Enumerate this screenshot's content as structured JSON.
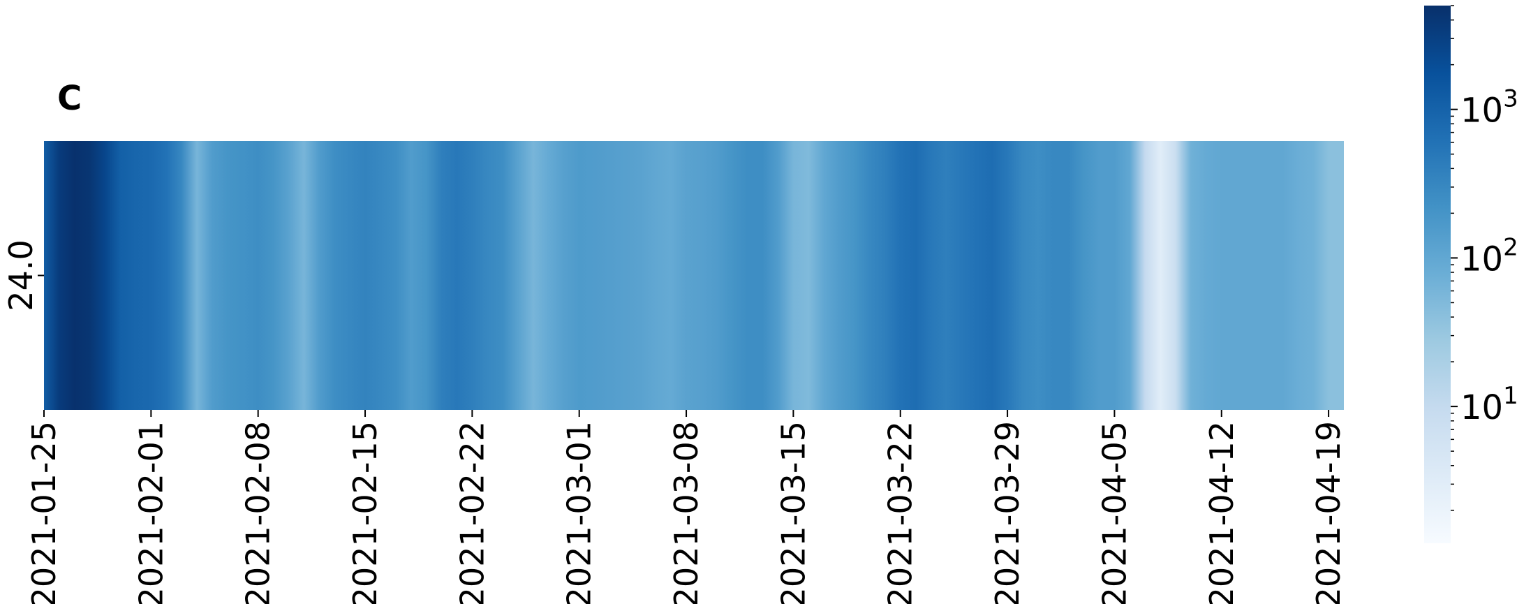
{
  "panel_label": "C",
  "chart_data": {
    "type": "heatmap",
    "title": "",
    "xlabel": "",
    "ylabel": "",
    "y_categories": [
      "24.0"
    ],
    "x_start": "2021-01-25",
    "x_end": "2021-04-20",
    "x_tick_labels": [
      "2021-01-25",
      "2021-02-01",
      "2021-02-08",
      "2021-02-15",
      "2021-02-22",
      "2021-03-01",
      "2021-03-08",
      "2021-03-15",
      "2021-03-22",
      "2021-03-29",
      "2021-04-05",
      "2021-04-12",
      "2021-04-19"
    ],
    "colormap": "Blues",
    "colorbar": {
      "scale": "log",
      "range": [
        1.2,
        5000
      ],
      "tick_labels": [
        {
          "value": 10,
          "base": "10",
          "exp": "1"
        },
        {
          "value": 100,
          "base": "10",
          "exp": "2"
        },
        {
          "value": 1000,
          "base": "10",
          "exp": "3"
        }
      ]
    },
    "grid": false,
    "series": [
      {
        "y": "24.0",
        "dates": [
          "2021-01-25",
          "2021-01-26",
          "2021-01-27",
          "2021-01-28",
          "2021-01-29",
          "2021-01-30",
          "2021-01-31",
          "2021-02-01",
          "2021-02-02",
          "2021-02-03",
          "2021-02-04",
          "2021-02-05",
          "2021-02-06",
          "2021-02-07",
          "2021-02-08",
          "2021-02-09",
          "2021-02-10",
          "2021-02-11",
          "2021-02-12",
          "2021-02-13",
          "2021-02-14",
          "2021-02-15",
          "2021-02-16",
          "2021-02-17",
          "2021-02-18",
          "2021-02-19",
          "2021-02-20",
          "2021-02-21",
          "2021-02-22",
          "2021-02-23",
          "2021-02-24",
          "2021-02-25",
          "2021-02-26",
          "2021-02-27",
          "2021-02-28",
          "2021-03-01",
          "2021-03-02",
          "2021-03-03",
          "2021-03-04",
          "2021-03-05",
          "2021-03-06",
          "2021-03-07",
          "2021-03-08",
          "2021-03-09",
          "2021-03-10",
          "2021-03-11",
          "2021-03-12",
          "2021-03-13",
          "2021-03-14",
          "2021-03-15",
          "2021-03-16",
          "2021-03-17",
          "2021-03-18",
          "2021-03-19",
          "2021-03-20",
          "2021-03-21",
          "2021-03-22",
          "2021-03-23",
          "2021-03-24",
          "2021-03-25",
          "2021-03-26",
          "2021-03-27",
          "2021-03-28",
          "2021-03-29",
          "2021-03-30",
          "2021-03-31",
          "2021-04-01",
          "2021-04-02",
          "2021-04-03",
          "2021-04-04",
          "2021-04-05",
          "2021-04-06",
          "2021-04-07",
          "2021-04-08",
          "2021-04-09",
          "2021-04-10",
          "2021-04-11",
          "2021-04-12",
          "2021-04-13",
          "2021-04-14",
          "2021-04-15",
          "2021-04-16",
          "2021-04-17",
          "2021-04-18",
          "2021-04-19",
          "2021-04-20"
        ],
        "values": [
          1200,
          3500,
          4800,
          4200,
          2500,
          1100,
          900,
          800,
          600,
          300,
          60,
          150,
          200,
          220,
          250,
          200,
          120,
          60,
          150,
          250,
          300,
          350,
          300,
          250,
          150,
          200,
          400,
          500,
          400,
          300,
          250,
          120,
          60,
          90,
          130,
          160,
          150,
          140,
          130,
          120,
          100,
          90,
          120,
          130,
          150,
          200,
          250,
          250,
          150,
          60,
          50,
          100,
          150,
          200,
          300,
          400,
          600,
          700,
          500,
          400,
          500,
          600,
          700,
          500,
          300,
          250,
          300,
          300,
          200,
          150,
          150,
          100,
          10,
          3,
          8,
          70,
          90,
          100,
          100,
          100,
          100,
          100,
          80,
          70,
          40,
          40
        ]
      }
    ]
  }
}
